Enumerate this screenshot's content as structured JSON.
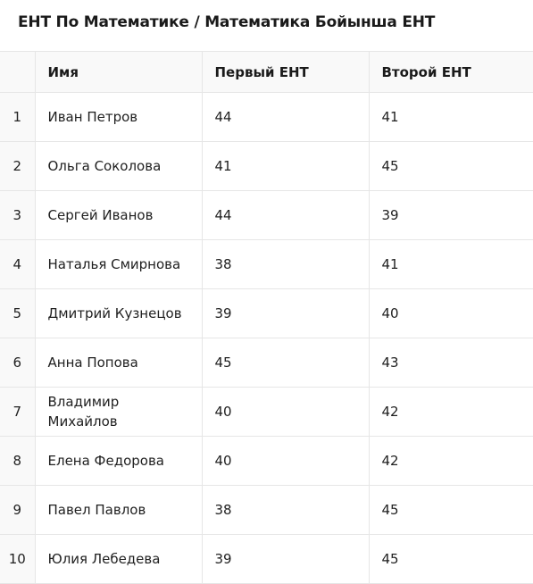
{
  "title": "ЕНТ По Математике / Математика Бойынша ЕНТ",
  "table": {
    "columns": [
      "",
      "Имя",
      "Первый ЕНТ",
      "Второй ЕНТ"
    ],
    "rows": [
      {
        "index": "1",
        "name": "Иван Петров",
        "first": "44",
        "second": "41"
      },
      {
        "index": "2",
        "name": "Ольга Соколова",
        "first": "41",
        "second": "45"
      },
      {
        "index": "3",
        "name": "Сергей Иванов",
        "first": "44",
        "second": "39"
      },
      {
        "index": "4",
        "name": "Наталья Смирнова",
        "first": "38",
        "second": "41"
      },
      {
        "index": "5",
        "name": "Дмитрий Кузнецов",
        "first": "39",
        "second": "40"
      },
      {
        "index": "6",
        "name": "Анна Попова",
        "first": "45",
        "second": "43"
      },
      {
        "index": "7",
        "name": "Владимир Михайлов",
        "first": "40",
        "second": "42"
      },
      {
        "index": "8",
        "name": "Елена Федорова",
        "first": "40",
        "second": "42"
      },
      {
        "index": "9",
        "name": "Павел Павлов",
        "first": "38",
        "second": "45"
      },
      {
        "index": "10",
        "name": "Юлия Лебедева",
        "first": "39",
        "second": "45"
      }
    ]
  }
}
